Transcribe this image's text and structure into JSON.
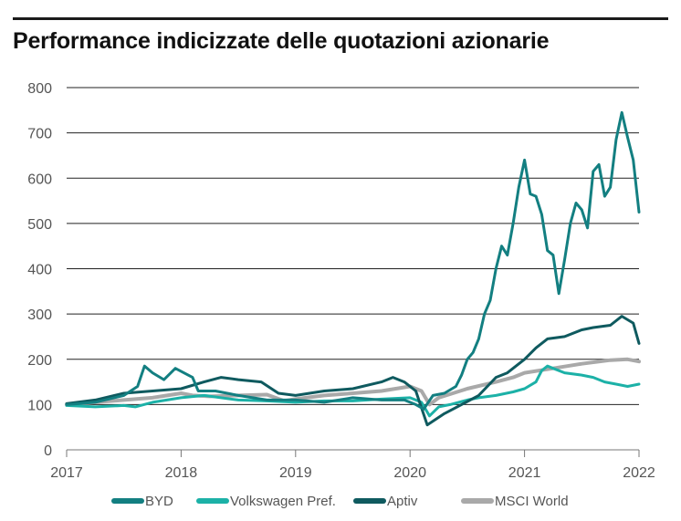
{
  "title": "Performance indicizzate delle quotazioni azionarie",
  "chart_data": {
    "type": "line",
    "title": "Performance indicizzate delle quotazioni azionarie",
    "xlabel": "",
    "ylabel": "",
    "xlim": [
      2017,
      2022
    ],
    "ylim": [
      0,
      800
    ],
    "yticks": [
      0,
      100,
      200,
      300,
      400,
      500,
      600,
      700,
      800
    ],
    "xticks": [
      "2017",
      "2018",
      "2019",
      "2020",
      "2021",
      "2022"
    ],
    "grid": true,
    "legend": "bottom",
    "series": [
      {
        "name": "BYD",
        "color": "#137f81",
        "x": [
          2017.0,
          2017.25,
          2017.5,
          2017.62,
          2017.68,
          2017.75,
          2017.85,
          2017.95,
          2018.1,
          2018.15,
          2018.3,
          2018.5,
          2018.75,
          2019.0,
          2019.25,
          2019.5,
          2019.75,
          2019.95,
          2020.05,
          2020.12,
          2020.2,
          2020.3,
          2020.4,
          2020.45,
          2020.5,
          2020.55,
          2020.6,
          2020.65,
          2020.7,
          2020.75,
          2020.8,
          2020.85,
          2020.9,
          2020.95,
          2021.0,
          2021.05,
          2021.1,
          2021.15,
          2021.2,
          2021.25,
          2021.3,
          2021.35,
          2021.4,
          2021.45,
          2021.5,
          2021.55,
          2021.6,
          2021.65,
          2021.7,
          2021.75,
          2021.8,
          2021.85,
          2021.9,
          2021.95,
          2022.0
        ],
        "values": [
          100,
          105,
          120,
          140,
          185,
          170,
          155,
          180,
          160,
          130,
          130,
          120,
          110,
          110,
          105,
          115,
          110,
          110,
          100,
          90,
          120,
          125,
          140,
          165,
          200,
          215,
          245,
          300,
          330,
          400,
          450,
          430,
          500,
          580,
          640,
          565,
          560,
          520,
          440,
          430,
          345,
          420,
          500,
          545,
          530,
          490,
          615,
          630,
          560,
          580,
          685,
          745,
          690,
          640,
          525
        ]
      },
      {
        "name": "Volkswagen Pref.",
        "color": "#1cb1a7",
        "x": [
          2017.0,
          2017.25,
          2017.5,
          2017.6,
          2017.75,
          2018.0,
          2018.2,
          2018.5,
          2018.75,
          2019.0,
          2019.25,
          2019.5,
          2019.75,
          2020.0,
          2020.1,
          2020.17,
          2020.25,
          2020.35,
          2020.5,
          2020.6,
          2020.75,
          2020.9,
          2021.0,
          2021.1,
          2021.15,
          2021.2,
          2021.25,
          2021.35,
          2021.5,
          2021.6,
          2021.7,
          2021.8,
          2021.9,
          2022.0
        ],
        "values": [
          98,
          95,
          98,
          95,
          105,
          115,
          120,
          110,
          108,
          105,
          108,
          108,
          112,
          115,
          105,
          75,
          95,
          100,
          110,
          115,
          120,
          128,
          135,
          150,
          175,
          185,
          180,
          170,
          165,
          160,
          150,
          145,
          140,
          145
        ]
      },
      {
        "name": "Aptiv",
        "color": "#0f5a5f",
        "x": [
          2017.0,
          2017.25,
          2017.5,
          2017.75,
          2018.0,
          2018.2,
          2018.35,
          2018.5,
          2018.7,
          2018.85,
          2019.0,
          2019.25,
          2019.5,
          2019.75,
          2019.85,
          2019.95,
          2020.05,
          2020.15,
          2020.3,
          2020.45,
          2020.6,
          2020.75,
          2020.85,
          2021.0,
          2021.1,
          2021.2,
          2021.35,
          2021.5,
          2021.6,
          2021.75,
          2021.85,
          2021.95,
          2022.0
        ],
        "values": [
          102,
          110,
          125,
          130,
          135,
          150,
          160,
          155,
          150,
          125,
          120,
          130,
          135,
          150,
          160,
          150,
          130,
          55,
          80,
          100,
          120,
          160,
          170,
          200,
          225,
          245,
          250,
          265,
          270,
          275,
          295,
          280,
          235
        ]
      },
      {
        "name": "MSCI World",
        "color": "#a9a9a9",
        "x": [
          2017.0,
          2017.25,
          2017.5,
          2017.75,
          2018.0,
          2018.1,
          2018.25,
          2018.5,
          2018.75,
          2018.9,
          2019.0,
          2019.25,
          2019.5,
          2019.75,
          2020.0,
          2020.1,
          2020.17,
          2020.25,
          2020.5,
          2020.75,
          2020.9,
          2021.0,
          2021.25,
          2021.5,
          2021.75,
          2021.9,
          2022.0
        ],
        "values": [
          100,
          105,
          110,
          115,
          125,
          120,
          118,
          120,
          122,
          108,
          112,
          120,
          125,
          130,
          140,
          130,
          100,
          115,
          135,
          150,
          160,
          170,
          180,
          190,
          198,
          200,
          195
        ]
      }
    ]
  }
}
